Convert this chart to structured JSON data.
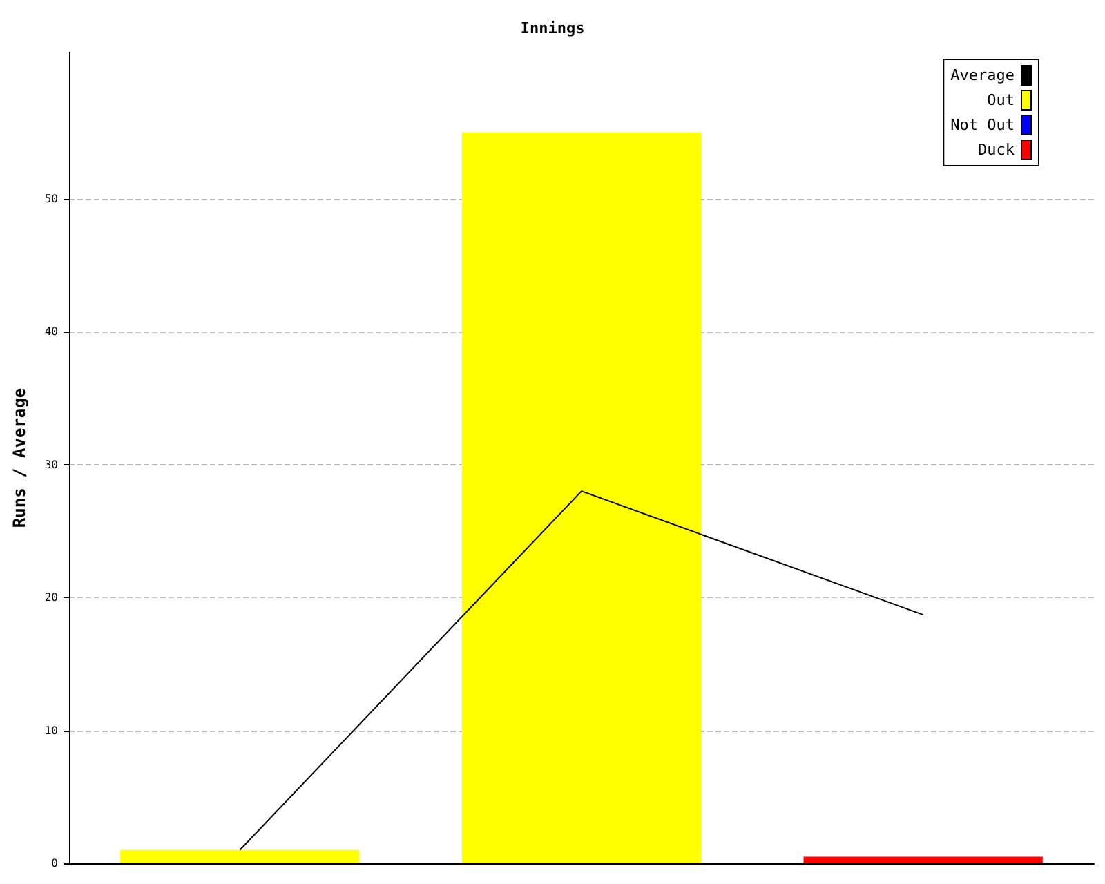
{
  "chart_data": {
    "type": "bar",
    "title": "Innings",
    "ylabel": "Runs / Average",
    "categories": [
      null,
      null,
      null
    ],
    "series": [
      {
        "name": "Average",
        "type": "line",
        "color": "#000000",
        "values": [
          1,
          28,
          18.7
        ]
      },
      {
        "name": "Out",
        "color": "#ffff00",
        "values": [
          1,
          55,
          null
        ]
      },
      {
        "name": "Not Out",
        "color": "#0000ff",
        "values": [
          null,
          null,
          null
        ]
      },
      {
        "name": "Duck",
        "color": "#ff0000",
        "values": [
          null,
          null,
          0.5
        ]
      }
    ],
    "ylim": [
      0,
      61
    ],
    "yticks": [
      0,
      10,
      20,
      30,
      40,
      50
    ],
    "grid": "y",
    "legend": "top right",
    "marker": "none"
  }
}
